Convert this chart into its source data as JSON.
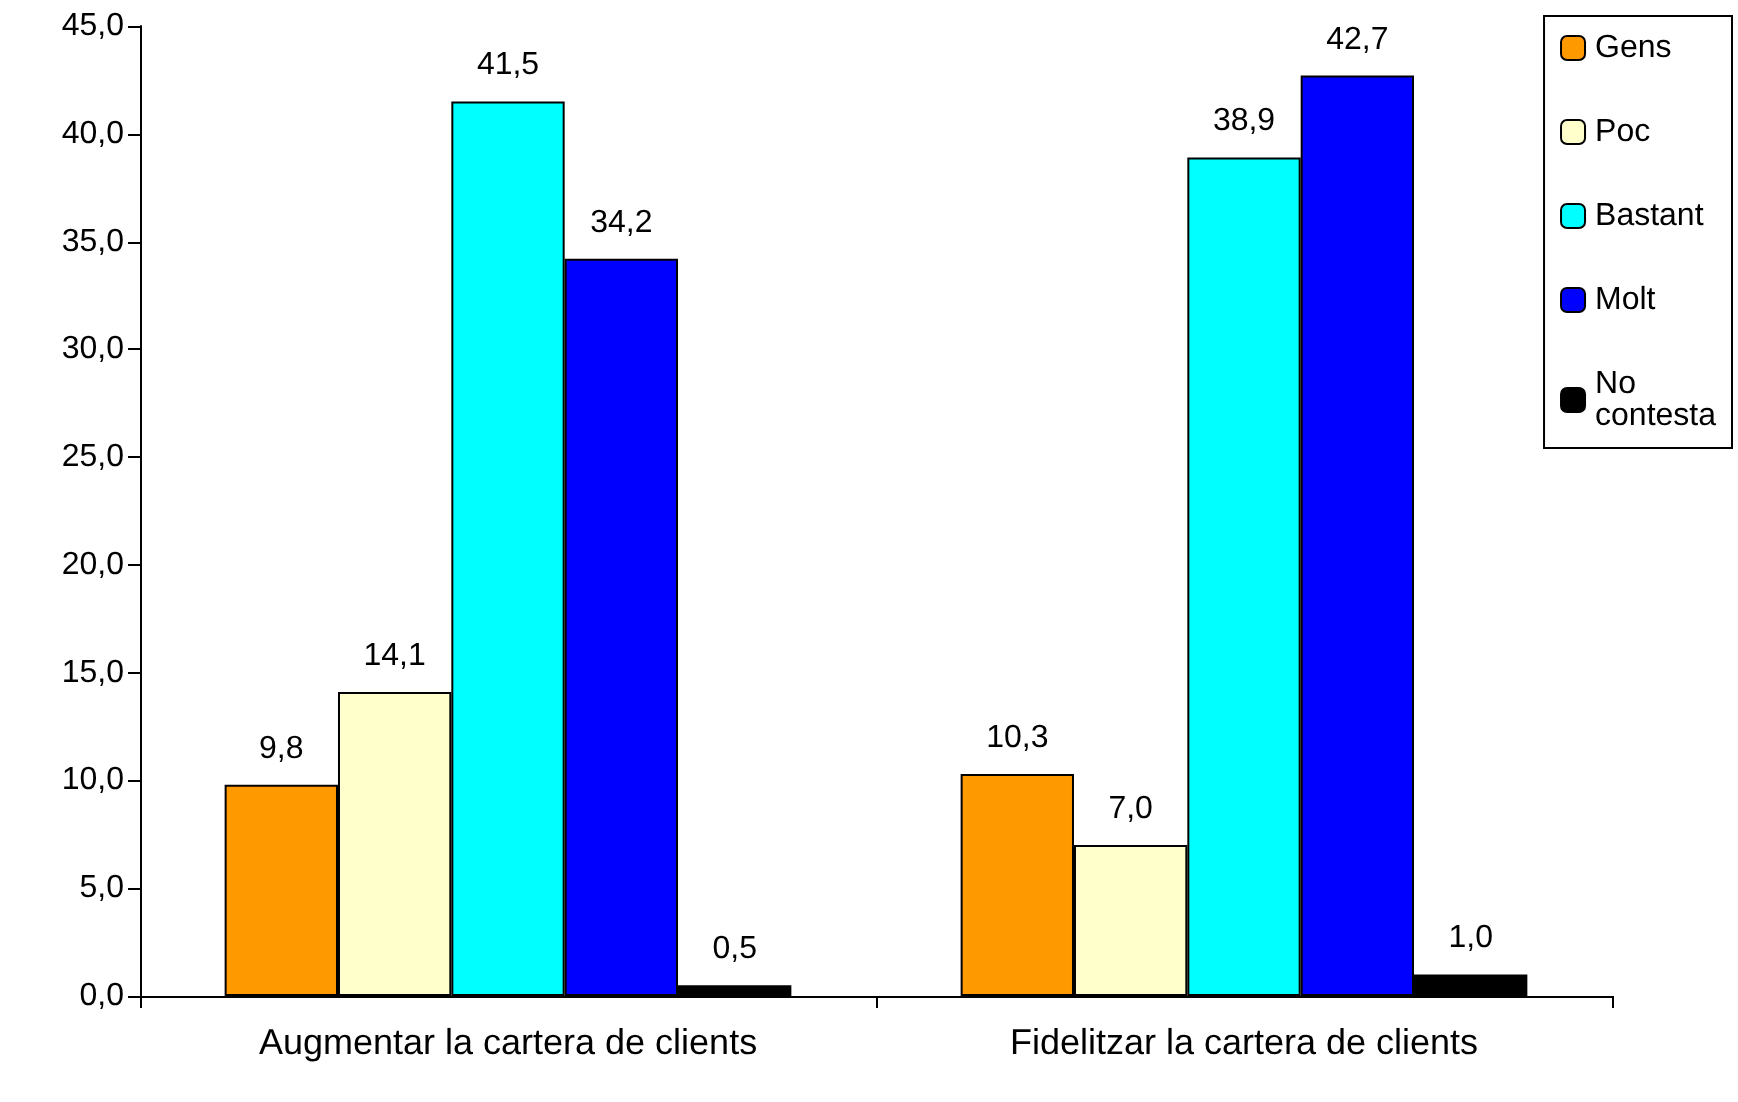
{
  "chart_data": {
    "type": "bar",
    "categories": [
      "Augmentar la cartera de clients",
      "Fidelitzar la cartera de clients"
    ],
    "series": [
      {
        "name": "Gens",
        "color": "#ff9900",
        "values": [
          9.8,
          10.3
        ],
        "value_labels": [
          "9,8",
          "10,3"
        ]
      },
      {
        "name": "Poc",
        "color": "#ffffcc",
        "values": [
          14.1,
          7.0
        ],
        "value_labels": [
          "14,1",
          "7,0"
        ]
      },
      {
        "name": "Bastant",
        "color": "#00ffff",
        "values": [
          41.5,
          38.9
        ],
        "value_labels": [
          "41,5",
          "38,9"
        ]
      },
      {
        "name": "Molt",
        "color": "#0000ff",
        "values": [
          34.2,
          42.7
        ],
        "value_labels": [
          "34,2",
          "42,7"
        ]
      },
      {
        "name": "No contesta",
        "color": "#000000",
        "values": [
          0.5,
          1.0
        ],
        "value_labels": [
          "0,5",
          "1,0"
        ]
      }
    ],
    "ylim": [
      0,
      45
    ],
    "yticks": [
      {
        "value": 0,
        "label": "0,0"
      },
      {
        "value": 5,
        "label": "5,0"
      },
      {
        "value": 10,
        "label": "10,0"
      },
      {
        "value": 15,
        "label": "15,0"
      },
      {
        "value": 20,
        "label": "20,0"
      },
      {
        "value": 25,
        "label": "25,0"
      },
      {
        "value": 30,
        "label": "30,0"
      },
      {
        "value": 35,
        "label": "35,0"
      },
      {
        "value": 40,
        "label": "40,0"
      },
      {
        "value": 45,
        "label": "45,0"
      }
    ],
    "grid": false,
    "legend": "top right"
  }
}
